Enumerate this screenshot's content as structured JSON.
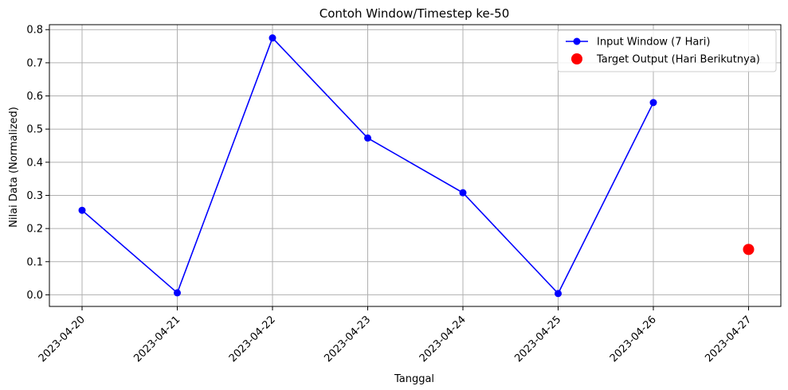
{
  "chart_data": {
    "type": "line",
    "title": "Contoh Window/Timestep ke-50",
    "xlabel": "Tanggal",
    "ylabel": "Nilai Data (Normalized)",
    "x_ticks": [
      "2023-04-20",
      "2023-04-21",
      "2023-04-22",
      "2023-04-23",
      "2023-04-24",
      "2023-04-25",
      "2023-04-26",
      "2023-04-27"
    ],
    "ylim": [
      -0.035,
      0.815
    ],
    "y_ticks": [
      "0.0",
      "0.1",
      "0.2",
      "0.3",
      "0.4",
      "0.5",
      "0.6",
      "0.7",
      "0.8"
    ],
    "grid": true,
    "legend_position": "top-right",
    "series": [
      {
        "name": "Input Window (7 Hari)",
        "kind": "line-marker",
        "color": "#0000ff",
        "x": [
          "2023-04-20",
          "2023-04-21",
          "2023-04-22",
          "2023-04-23",
          "2023-04-24",
          "2023-04-25",
          "2023-04-26"
        ],
        "values": [
          0.255,
          0.006,
          0.775,
          0.473,
          0.308,
          0.004,
          0.58
        ]
      },
      {
        "name": "Target Output (Hari Berikutnya)",
        "kind": "scatter",
        "color": "#ff0000",
        "x": [
          "2023-04-27"
        ],
        "values": [
          0.137
        ]
      }
    ]
  }
}
